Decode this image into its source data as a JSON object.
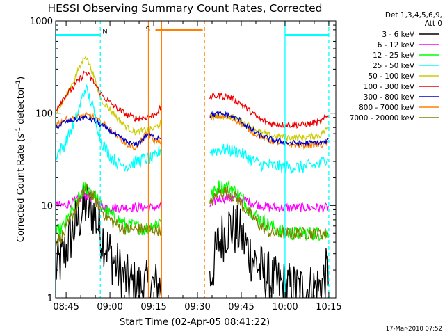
{
  "chart_data": {
    "type": "line",
    "title": "HESSI Observing Summary Count Rates, Corrected",
    "xlabel": "Start Time (02-Apr-05 08:41:22)",
    "ylabel_main": "Corrected Count Rate (s",
    "ylabel_sup1": "-1",
    "ylabel_mid": " detector",
    "ylabel_sup2": "-1",
    "ylabel_end": ")",
    "y_scale": "log",
    "ylim": [
      1,
      1000
    ],
    "xlim": [
      8.69,
      10.29
    ],
    "y_ticks": [
      {
        "v": 1,
        "label": "1"
      },
      {
        "v": 10,
        "label": "10"
      },
      {
        "v": 100,
        "label": "100"
      },
      {
        "v": 1000,
        "label": "1000"
      }
    ],
    "x_ticks": [
      {
        "v": 8.75,
        "label": "08:45"
      },
      {
        "v": 9.0,
        "label": "09:00"
      },
      {
        "v": 9.25,
        "label": "09:15"
      },
      {
        "v": 9.5,
        "label": "09:30"
      },
      {
        "v": 9.75,
        "label": "09:45"
      },
      {
        "v": 10.0,
        "label": "10:00"
      },
      {
        "v": 10.25,
        "label": "10:15"
      }
    ],
    "legend": {
      "placement": "right",
      "header": [
        "Det 1,3,4,5,6,9,",
        "Att 0"
      ],
      "entries": [
        {
          "label": "3 - 6 keV",
          "color": "#000000"
        },
        {
          "label": "6 - 12 keV",
          "color": "#ff00ff"
        },
        {
          "label": "12 - 25 keV",
          "color": "#00ff00"
        },
        {
          "label": "25 - 50 keV",
          "color": "#00ffff"
        },
        {
          "label": "50 - 100 keV",
          "color": "#cccc00"
        },
        {
          "label": "100 - 300 keV",
          "color": "#ee0000"
        },
        {
          "label": "300 - 800 keV",
          "color": "#0000cc"
        },
        {
          "label": "800 - 7000 keV",
          "color": "#ff8000"
        },
        {
          "label": "7000 - 20000 keV",
          "color": "#808000"
        }
      ]
    },
    "annotations": {
      "night_bars": [
        {
          "label": "N",
          "color": "#00ffff",
          "y": 700,
          "x_start": 8.69,
          "x_end": 8.945
        },
        {
          "label": "",
          "color": "#00ffff",
          "y": 700,
          "x_start": 10.0,
          "x_end": 10.25
        }
      ],
      "saa_bar": {
        "label": "S",
        "color": "#ff8000",
        "y": 800,
        "x_start": 9.26,
        "x_end": 9.53
      },
      "vlines": [
        {
          "x": 8.69,
          "color": "#00ffff",
          "style": "solid"
        },
        {
          "x": 8.945,
          "color": "#00ffff",
          "style": "dashed"
        },
        {
          "x": 9.22,
          "color": "#ff8000",
          "style": "solid"
        },
        {
          "x": 9.295,
          "color": "#ff8000",
          "style": "solid"
        },
        {
          "x": 9.54,
          "color": "#ff8000",
          "style": "dashed"
        },
        {
          "x": 10.0,
          "color": "#00ffff",
          "style": "solid"
        },
        {
          "x": 10.25,
          "color": "#00ffff",
          "style": "dashed"
        }
      ]
    },
    "series": [
      {
        "name": "3 - 6 keV",
        "color": "#000000",
        "noise": 0.3,
        "segments": [
          [
            [
              8.69,
              2
            ],
            [
              8.74,
              3
            ],
            [
              8.8,
              6
            ],
            [
              8.86,
              10
            ],
            [
              8.9,
              9
            ],
            [
              8.95,
              5
            ],
            [
              9.0,
              3
            ],
            [
              9.05,
              2
            ],
            [
              9.1,
              1.5
            ],
            [
              9.15,
              1.3
            ],
            [
              9.2,
              1.3
            ],
            [
              9.295,
              1.3
            ]
          ],
          [
            [
              9.57,
              1.5
            ],
            [
              9.62,
              4
            ],
            [
              9.68,
              6
            ],
            [
              9.74,
              5
            ],
            [
              9.8,
              3
            ],
            [
              9.86,
              2
            ],
            [
              9.92,
              1.5
            ],
            [
              10.0,
              1.3
            ],
            [
              10.1,
              1.2
            ],
            [
              10.2,
              1.3
            ],
            [
              10.25,
              2
            ]
          ]
        ]
      },
      {
        "name": "6 - 12 keV",
        "color": "#ff00ff",
        "noise": 0.05,
        "segments": [
          [
            [
              8.69,
              10
            ],
            [
              8.74,
              10
            ],
            [
              8.8,
              11
            ],
            [
              8.86,
              13
            ],
            [
              8.9,
              12
            ],
            [
              8.95,
              10
            ],
            [
              9.0,
              9.5
            ],
            [
              9.295,
              9.5
            ]
          ],
          [
            [
              9.57,
              10
            ],
            [
              9.62,
              12
            ],
            [
              9.68,
              12
            ],
            [
              9.74,
              12
            ],
            [
              9.8,
              11
            ],
            [
              9.86,
              10
            ],
            [
              9.92,
              9.5
            ],
            [
              10.25,
              9.5
            ]
          ]
        ]
      },
      {
        "name": "12 - 25 keV",
        "color": "#00ff00",
        "noise": 0.08,
        "segments": [
          [
            [
              8.69,
              5
            ],
            [
              8.74,
              6
            ],
            [
              8.8,
              10
            ],
            [
              8.86,
              16
            ],
            [
              8.9,
              14
            ],
            [
              8.95,
              10
            ],
            [
              9.0,
              8
            ],
            [
              9.05,
              7
            ],
            [
              9.1,
              6
            ],
            [
              9.15,
              6
            ],
            [
              9.2,
              5.5
            ],
            [
              9.295,
              7
            ]
          ],
          [
            [
              9.57,
              12
            ],
            [
              9.62,
              16
            ],
            [
              9.68,
              16
            ],
            [
              9.74,
              13
            ],
            [
              9.8,
              9
            ],
            [
              9.86,
              7
            ],
            [
              9.92,
              6
            ],
            [
              10.0,
              5
            ],
            [
              10.1,
              5
            ],
            [
              10.2,
              5
            ],
            [
              10.25,
              5
            ]
          ]
        ]
      },
      {
        "name": "25 - 50 keV",
        "color": "#00ffff",
        "noise": 0.07,
        "segments": [
          [
            [
              8.69,
              35
            ],
            [
              8.74,
              45
            ],
            [
              8.8,
              80
            ],
            [
              8.86,
              190
            ],
            [
              8.9,
              120
            ],
            [
              8.95,
              50
            ],
            [
              9.0,
              35
            ],
            [
              9.05,
              28
            ],
            [
              9.1,
              27
            ],
            [
              9.15,
              30
            ],
            [
              9.2,
              32
            ],
            [
              9.25,
              32
            ],
            [
              9.295,
              42
            ]
          ],
          [
            [
              9.57,
              38
            ],
            [
              9.62,
              40
            ],
            [
              9.68,
              40
            ],
            [
              9.74,
              38
            ],
            [
              9.8,
              32
            ],
            [
              9.86,
              28
            ],
            [
              9.92,
              27
            ],
            [
              10.0,
              26
            ],
            [
              10.1,
              26
            ],
            [
              10.2,
              28
            ],
            [
              10.25,
              35
            ]
          ]
        ]
      },
      {
        "name": "50 - 100 keV",
        "color": "#cccc00",
        "noise": 0.035,
        "segments": [
          [
            [
              8.69,
              100
            ],
            [
              8.74,
              140
            ],
            [
              8.8,
              240
            ],
            [
              8.86,
              430
            ],
            [
              8.9,
              280
            ],
            [
              8.95,
              140
            ],
            [
              9.0,
              110
            ],
            [
              9.05,
              85
            ],
            [
              9.1,
              70
            ],
            [
              9.15,
              62
            ],
            [
              9.2,
              65
            ],
            [
              9.25,
              68
            ],
            [
              9.295,
              80
            ]
          ],
          [
            [
              9.57,
              90
            ],
            [
              9.62,
              95
            ],
            [
              9.68,
              92
            ],
            [
              9.74,
              85
            ],
            [
              9.8,
              72
            ],
            [
              9.86,
              62
            ],
            [
              9.92,
              57
            ],
            [
              10.0,
              55
            ],
            [
              10.1,
              54
            ],
            [
              10.2,
              58
            ],
            [
              10.25,
              70
            ]
          ]
        ]
      },
      {
        "name": "100 - 300 keV",
        "color": "#ee0000",
        "noise": 0.035,
        "segments": [
          [
            [
              8.69,
              110
            ],
            [
              8.74,
              150
            ],
            [
              8.8,
              200
            ],
            [
              8.86,
              280
            ],
            [
              8.9,
              230
            ],
            [
              8.95,
              160
            ],
            [
              9.0,
              130
            ],
            [
              9.05,
              110
            ],
            [
              9.1,
              95
            ],
            [
              9.15,
              88
            ],
            [
              9.2,
              90
            ],
            [
              9.25,
              95
            ],
            [
              9.295,
              115
            ]
          ],
          [
            [
              9.57,
              150
            ],
            [
              9.62,
              155
            ],
            [
              9.68,
              150
            ],
            [
              9.74,
              130
            ],
            [
              9.8,
              105
            ],
            [
              9.86,
              85
            ],
            [
              9.92,
              77
            ],
            [
              10.0,
              75
            ],
            [
              10.1,
              75
            ],
            [
              10.2,
              80
            ],
            [
              10.25,
              95
            ]
          ]
        ]
      },
      {
        "name": "300 - 800 keV",
        "color": "#0000cc",
        "noise": 0.03,
        "segments": [
          [
            [
              8.69,
              70
            ],
            [
              8.74,
              80
            ],
            [
              8.8,
              85
            ],
            [
              8.86,
              90
            ],
            [
              8.9,
              85
            ],
            [
              8.95,
              75
            ],
            [
              9.0,
              65
            ],
            [
              9.05,
              55
            ],
            [
              9.1,
              48
            ],
            [
              9.15,
              45
            ],
            [
              9.2,
              55
            ],
            [
              9.22,
              60
            ],
            [
              9.25,
              55
            ],
            [
              9.295,
              55
            ]
          ],
          [
            [
              9.57,
              95
            ],
            [
              9.62,
              98
            ],
            [
              9.68,
              95
            ],
            [
              9.74,
              85
            ],
            [
              9.8,
              68
            ],
            [
              9.86,
              57
            ],
            [
              9.92,
              52
            ],
            [
              10.0,
              48
            ],
            [
              10.1,
              47
            ],
            [
              10.2,
              48
            ],
            [
              10.25,
              50
            ]
          ]
        ]
      },
      {
        "name": "800 - 7000 keV",
        "color": "#ff8000",
        "noise": 0.03,
        "segments": [
          [
            [
              8.69,
              75
            ],
            [
              8.74,
              85
            ],
            [
              8.8,
              90
            ],
            [
              8.86,
              95
            ],
            [
              8.9,
              92
            ],
            [
              8.95,
              80
            ],
            [
              9.0,
              68
            ],
            [
              9.05,
              55
            ],
            [
              9.1,
              45
            ],
            [
              9.15,
              42
            ],
            [
              9.2,
              58
            ],
            [
              9.22,
              60
            ],
            [
              9.25,
              50
            ],
            [
              9.295,
              50
            ]
          ],
          [
            [
              9.57,
              90
            ],
            [
              9.62,
              92
            ],
            [
              9.68,
              90
            ],
            [
              9.74,
              80
            ],
            [
              9.8,
              65
            ],
            [
              9.86,
              55
            ],
            [
              9.92,
              50
            ],
            [
              10.0,
              46
            ],
            [
              10.1,
              45
            ],
            [
              10.2,
              45
            ],
            [
              10.25,
              47
            ]
          ]
        ]
      },
      {
        "name": "7000 - 20000 keV",
        "color": "#808000",
        "noise": 0.07,
        "segments": [
          [
            [
              8.69,
              4
            ],
            [
              8.74,
              5
            ],
            [
              8.8,
              9
            ],
            [
              8.86,
              15
            ],
            [
              8.9,
              13
            ],
            [
              8.95,
              9
            ],
            [
              9.0,
              7
            ],
            [
              9.05,
              6
            ],
            [
              9.1,
              5.5
            ],
            [
              9.15,
              5.5
            ],
            [
              9.2,
              5.5
            ],
            [
              9.295,
              5.5
            ]
          ],
          [
            [
              9.57,
              10
            ],
            [
              9.62,
              14
            ],
            [
              9.68,
              14
            ],
            [
              9.74,
              11
            ],
            [
              9.8,
              8
            ],
            [
              9.86,
              6
            ],
            [
              9.92,
              5
            ],
            [
              10.0,
              5
            ],
            [
              10.1,
              5
            ],
            [
              10.2,
              5
            ],
            [
              10.25,
              5
            ]
          ]
        ]
      }
    ]
  },
  "footer": {
    "timestamp": "17-Mar-2010 07:52"
  }
}
